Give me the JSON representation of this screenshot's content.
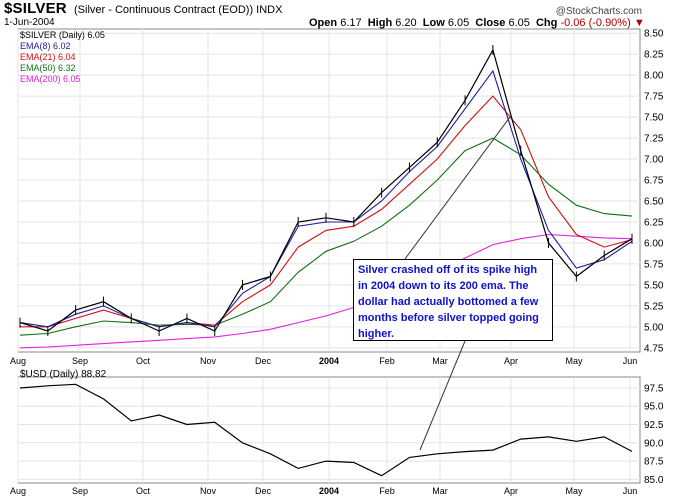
{
  "header": {
    "symbol": "$SILVER",
    "description": "(Silver - Continuous Contract (EOD))",
    "exchange": "INDX",
    "date": "1-Jun-2004",
    "open_label": "Open",
    "open": "6.17",
    "high_label": "High",
    "high": "6.20",
    "low_label": "Low",
    "low": "6.05",
    "close_label": "Close",
    "close": "6.05",
    "chg_label": "Chg",
    "chg": "-0.06 (-0.90%)",
    "brand": "@StockCharts.com"
  },
  "legend": [
    {
      "label": "$SILVER (Daily) 6.05",
      "color": "#000000"
    },
    {
      "label": "EMA(8) 6.02",
      "color": "#1c1c9c"
    },
    {
      "label": "EMA(21) 6.04",
      "color": "#d01010"
    },
    {
      "label": "EMA(50) 6.32",
      "color": "#107010"
    },
    {
      "label": "EMA(200) 6.05",
      "color": "#e020e0"
    }
  ],
  "usd_label": "$USD (Daily) 88.82",
  "annotation": "Silver crashed off of its spike high in 2004 down to its 200 ema.  The dollar had actually bottomed a few months before silver topped going higher.",
  "chart_data": [
    {
      "type": "line",
      "title": "$SILVER (Daily)",
      "ylim": [
        4.7,
        8.55
      ],
      "yticks": [
        "4.75",
        "5.00",
        "5.25",
        "5.50",
        "5.75",
        "6.00",
        "6.25",
        "6.50",
        "6.75",
        "7.00",
        "7.25",
        "7.50",
        "7.75",
        "8.00",
        "8.25",
        "8.50"
      ],
      "xticks": [
        "Aug",
        "Sep",
        "Oct",
        "Nov",
        "Dec",
        "2004",
        "Feb",
        "Mar",
        "Apr",
        "May",
        "Jun"
      ],
      "x": [
        "Aug",
        "Aug-mid",
        "Sep",
        "Sep-mid",
        "Oct",
        "Oct-mid",
        "Nov",
        "Nov-mid",
        "Dec",
        "Dec-mid",
        "Jan",
        "Jan-mid",
        "Feb",
        "Feb-mid",
        "Mar",
        "Mar-mid",
        "Apr-early",
        "Apr",
        "Apr-late",
        "May",
        "May-mid",
        "May-late",
        "Jun"
      ],
      "series": [
        {
          "name": "$SILVER",
          "color": "#000000",
          "values": [
            5.05,
            4.95,
            5.2,
            5.3,
            5.1,
            4.95,
            5.1,
            4.95,
            5.5,
            5.6,
            6.25,
            6.3,
            6.25,
            6.6,
            6.9,
            7.2,
            7.7,
            8.3,
            7.1,
            6.0,
            5.6,
            5.85,
            6.05
          ]
        },
        {
          "name": "EMA(8)",
          "color": "#1c1c9c",
          "values": [
            5.05,
            5.0,
            5.15,
            5.25,
            5.1,
            5.0,
            5.05,
            5.0,
            5.4,
            5.6,
            6.2,
            6.25,
            6.25,
            6.5,
            6.85,
            7.15,
            7.6,
            8.05,
            7.0,
            6.15,
            5.7,
            5.8,
            6.02
          ]
        },
        {
          "name": "EMA(21)",
          "color": "#d01010",
          "values": [
            5.0,
            5.0,
            5.1,
            5.2,
            5.1,
            5.0,
            5.05,
            5.02,
            5.3,
            5.5,
            5.95,
            6.15,
            6.2,
            6.4,
            6.7,
            7.0,
            7.4,
            7.75,
            7.35,
            6.55,
            6.1,
            5.95,
            6.04
          ]
        },
        {
          "name": "EMA(50)",
          "color": "#107010",
          "values": [
            4.9,
            4.92,
            5.0,
            5.07,
            5.05,
            5.02,
            5.03,
            5.02,
            5.15,
            5.3,
            5.65,
            5.9,
            6.02,
            6.2,
            6.45,
            6.75,
            7.1,
            7.25,
            7.05,
            6.7,
            6.45,
            6.35,
            6.32
          ]
        },
        {
          "name": "EMA(200)",
          "color": "#e020e0",
          "values": [
            4.75,
            4.76,
            4.78,
            4.8,
            4.82,
            4.84,
            4.86,
            4.88,
            4.92,
            4.97,
            5.05,
            5.13,
            5.23,
            5.35,
            5.5,
            5.65,
            5.82,
            5.98,
            6.05,
            6.1,
            6.08,
            6.06,
            6.05
          ]
        }
      ]
    },
    {
      "type": "line",
      "title": "$USD (Daily)",
      "ylim": [
        84.5,
        99
      ],
      "yticks": [
        "85.0",
        "87.5",
        "90.0",
        "92.5",
        "95.0",
        "97.5"
      ],
      "xticks": [
        "Aug",
        "Sep",
        "Oct",
        "Nov",
        "Dec",
        "2004",
        "Feb",
        "Mar",
        "Apr",
        "May",
        "Jun"
      ],
      "x": [
        "Aug",
        "Aug-mid",
        "Sep",
        "Sep-mid",
        "Oct",
        "Oct-mid",
        "Nov",
        "Nov-mid",
        "Dec",
        "Dec-mid",
        "Jan",
        "Jan-mid",
        "Feb",
        "Feb-mid",
        "Mar",
        "Mar-mid",
        "Apr-early",
        "Apr",
        "Apr-late",
        "May",
        "May-mid",
        "May-late",
        "Jun"
      ],
      "series": [
        {
          "name": "$USD",
          "color": "#000000",
          "values": [
            97.5,
            97.8,
            98.0,
            96.0,
            93.0,
            93.8,
            92.5,
            92.8,
            90.0,
            88.5,
            86.5,
            87.5,
            87.3,
            85.5,
            88.0,
            88.5,
            88.8,
            89.0,
            90.5,
            90.8,
            90.2,
            90.8,
            88.82
          ]
        }
      ]
    }
  ]
}
